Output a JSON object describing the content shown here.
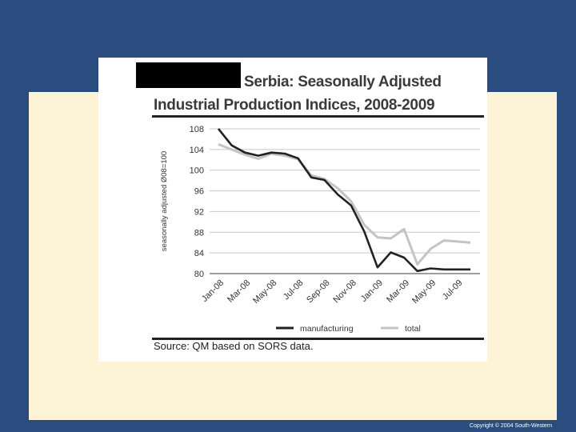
{
  "slide": {
    "colors": {
      "background": "#2b4c7e",
      "panel": "#fdf3d6"
    },
    "copyright": "Copyright © 2004 South-Western"
  },
  "figure": {
    "title_line1": "Serbia: Seasonally Adjusted",
    "title_line2": "Industrial Production Indices, 2008-2009",
    "source": "Source: QM based on SORS data."
  },
  "chart_data": {
    "type": "line",
    "title": "Serbia: Seasonally Adjusted Industrial Production Indices, 2008-2009",
    "ylabel": "seasonally adjusted Ø08=100",
    "xlabel": "",
    "ylim": [
      80,
      108
    ],
    "yticks": [
      80,
      84,
      88,
      92,
      96,
      100,
      104,
      108
    ],
    "grid": true,
    "legend": "bottom",
    "categories": [
      "Jan-08",
      "Feb-08",
      "Mar-08",
      "Apr-08",
      "May-08",
      "Jun-08",
      "Jul-08",
      "Aug-08",
      "Sep-08",
      "Oct-08",
      "Nov-08",
      "Dec-08",
      "Jan-09",
      "Feb-09",
      "Mar-09",
      "Apr-09",
      "May-09",
      "Jun-09",
      "Jul-09",
      "Aug-09"
    ],
    "tick_labels": [
      "Jan-08",
      "Mar-08",
      "May-08",
      "Jul-08",
      "Sep-08",
      "Nov-08",
      "Jan-09",
      "Mar-09",
      "May-09",
      "Jul-09"
    ],
    "series": [
      {
        "name": "manufacturing",
        "color": "#222222",
        "values": [
          108,
          104.8,
          103.4,
          102.8,
          103.4,
          103.2,
          102.3,
          98.6,
          98.1,
          95.3,
          93.2,
          88.1,
          81.2,
          84.1,
          83.1,
          80.5,
          81.0,
          80.8,
          80.8,
          80.8
        ]
      },
      {
        "name": "total",
        "color": "#c4c4c4",
        "values": [
          105,
          104,
          103,
          102.2,
          103.2,
          102.8,
          102.1,
          99.0,
          98.3,
          96.5,
          94.0,
          89.4,
          87.0,
          86.8,
          88.6,
          81.8,
          84.8,
          86.4,
          86.2,
          86.0
        ]
      }
    ]
  }
}
